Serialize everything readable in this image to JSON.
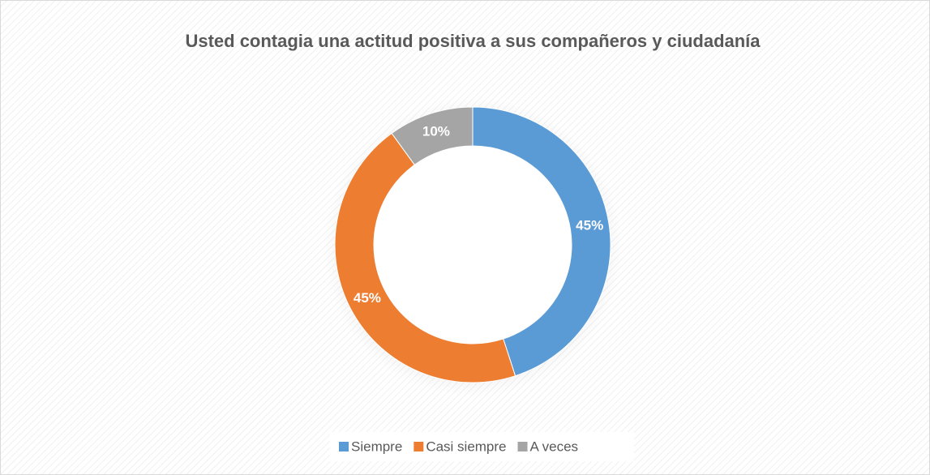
{
  "chart_data": {
    "type": "donut",
    "title": "Usted contagia una actitud positiva a sus compañeros y ciudadanía",
    "categories": [
      "Siempre",
      "Casi siempre",
      "A veces"
    ],
    "values": [
      45,
      45,
      10
    ],
    "value_labels": [
      "45%",
      "45%",
      "10%"
    ],
    "colors": [
      "#5b9bd5",
      "#ed7d31",
      "#a5a5a5"
    ],
    "legend": "bottom"
  }
}
